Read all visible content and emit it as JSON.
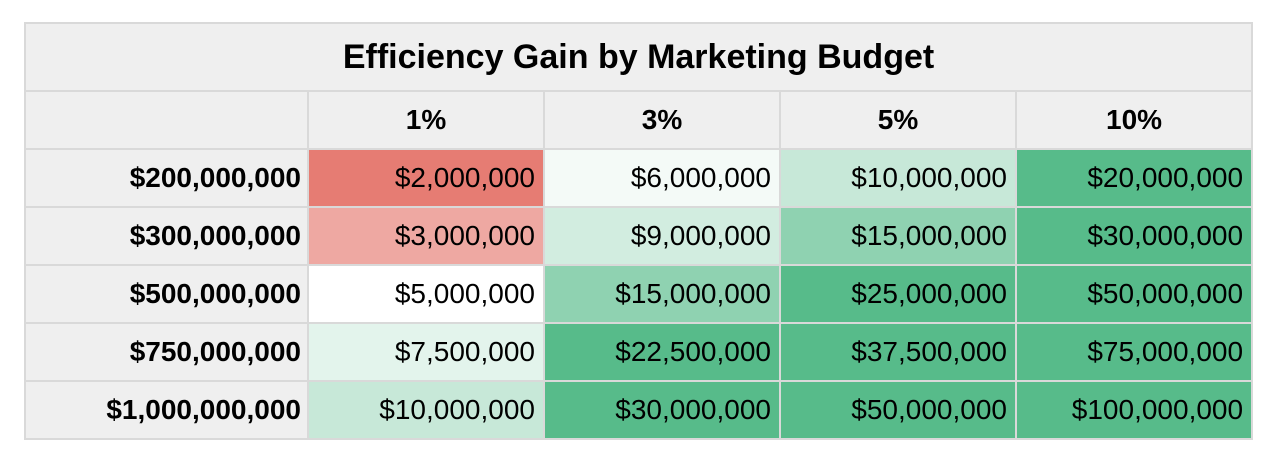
{
  "chart_data": {
    "type": "heatmap",
    "title": "Efficiency Gain by Marketing Budget",
    "column_labels": [
      "1%",
      "3%",
      "5%",
      "10%"
    ],
    "row_labels": [
      "$200,000,000",
      "$300,000,000",
      "$500,000,000",
      "$750,000,000",
      "$1,000,000,000"
    ],
    "cells": [
      [
        "$2,000,000",
        "$6,000,000",
        "$10,000,000",
        "$20,000,000"
      ],
      [
        "$3,000,000",
        "$9,000,000",
        "$15,000,000",
        "$30,000,000"
      ],
      [
        "$5,000,000",
        "$15,000,000",
        "$25,000,000",
        "$50,000,000"
      ],
      [
        "$7,500,000",
        "$22,500,000",
        "$37,500,000",
        "$75,000,000"
      ],
      [
        "$10,000,000",
        "$30,000,000",
        "$50,000,000",
        "$100,000,000"
      ]
    ],
    "values": [
      [
        2000000,
        6000000,
        10000000,
        20000000
      ],
      [
        3000000,
        9000000,
        15000000,
        30000000
      ],
      [
        5000000,
        15000000,
        25000000,
        50000000
      ],
      [
        7500000,
        22500000,
        37500000,
        75000000
      ],
      [
        10000000,
        30000000,
        50000000,
        100000000
      ]
    ],
    "color_scale": {
      "min_color": "#e67c73",
      "mid_color": "#ffffff",
      "max_color": "#57bb8a",
      "min_value": 2000000,
      "mid_value": 5000000,
      "max_value": 20000000
    }
  },
  "colors": {
    "header_background": "#efefef",
    "grid_border": "#d9d9d9",
    "text": "#000000"
  }
}
